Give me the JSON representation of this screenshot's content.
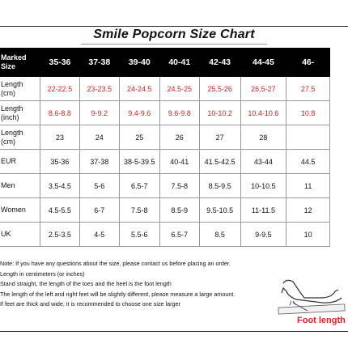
{
  "title": "Smile Popcorn Size Chart",
  "header": {
    "label_lines": [
      "Marked",
      "Size"
    ],
    "sizes": [
      "35-36",
      "37-38",
      "39-40",
      "40-41",
      "42-43",
      "44-45",
      "46-"
    ]
  },
  "rows": [
    {
      "label_lines": [
        "Length",
        "(cm)"
      ],
      "values": [
        "22-22.5",
        "23-23.5",
        "24-24.5",
        "24.5-25",
        "25.5-26",
        "26.5-27",
        "27.5"
      ],
      "highlight": true
    },
    {
      "label_lines": [
        "Length",
        "(inch)"
      ],
      "values": [
        "8.6-8.8",
        "9-9.2",
        "9.4-9.6",
        "9.6-9.8",
        "10-10.2",
        "10.4-10.6",
        "10.8"
      ],
      "highlight": true
    },
    {
      "label_lines": [
        "Length",
        "(cm)"
      ],
      "values": [
        "23",
        "24",
        "25",
        "26",
        "27",
        "28",
        ""
      ],
      "highlight": false
    },
    {
      "label_lines": [
        "EUR"
      ],
      "values": [
        "35-36",
        "37-38",
        "38-5-39.5",
        "40-41",
        "41.5-42.5",
        "43-44",
        "44.5"
      ],
      "highlight": false
    },
    {
      "label_lines": [
        "Men"
      ],
      "values": [
        "3.5-4.5",
        "5-6",
        "6.5-7",
        "7.5-8",
        "8.5-9.5",
        "10-10.5",
        "11"
      ],
      "highlight": false
    },
    {
      "label_lines": [
        "Women"
      ],
      "values": [
        "4.5-5.5",
        "6-7",
        "7.5-8",
        "8.5-9",
        "9.5-10.5",
        "11-11.5",
        "12"
      ],
      "highlight": false
    },
    {
      "label_lines": [
        "UK"
      ],
      "values": [
        "2.5-3.5",
        "4-5",
        "5.5-6",
        "6.5-7",
        "8.5",
        "9-9.5",
        "10"
      ],
      "highlight": false
    }
  ],
  "notes": [
    "Note: If you have any questions about the size, please contact us before placing an order.",
    "Length in centimeters (or inches)",
    "Stand straight, the length of the toes and the heel is the foot length",
    "The length of the left and right feet will be slightly different, please measure a large amount.",
    "If feet are thick and wide, it is recommended to choose one size larger"
  ],
  "illustration": {
    "label": "Foot length",
    "icon": "foot-measure-icon"
  },
  "colors": {
    "header_bg": "#000000",
    "highlight_text": "#d71e1e",
    "foot_label": "#e02020"
  }
}
